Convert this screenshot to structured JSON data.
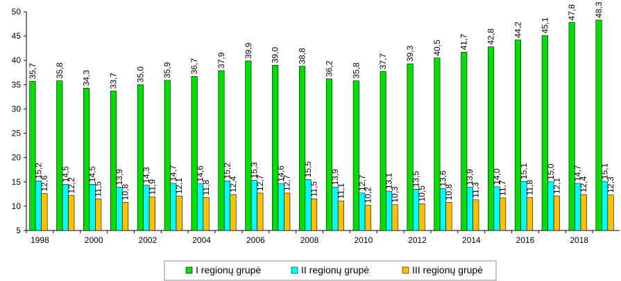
{
  "chart_data": {
    "type": "bar",
    "categories": [
      "1998",
      null,
      "2000",
      null,
      "2002",
      null,
      "2004",
      null,
      "2006",
      null,
      "2008",
      null,
      "2010",
      null,
      "2012",
      null,
      "2014",
      null,
      "2016",
      null,
      "2018",
      null
    ],
    "ylim": [
      5,
      50
    ],
    "yticks": [
      5,
      10,
      15,
      20,
      25,
      30,
      35,
      40,
      45,
      50
    ],
    "legend": "bottom",
    "series": [
      {
        "name": "I regionų grupė",
        "color": "#00dd00",
        "values": [
          35.7,
          35.8,
          34.3,
          33.7,
          35.0,
          35.9,
          36.7,
          37.9,
          39.9,
          39.0,
          38.8,
          36.2,
          35.8,
          37.7,
          39.3,
          40.5,
          41.7,
          42.8,
          44.2,
          45.1,
          47.8,
          48.3
        ],
        "value_labels": [
          "35,7",
          "35,8",
          "34,3",
          "33,7",
          "35,0",
          "35,9",
          "36,7",
          "37,9",
          "39,9",
          "39,0",
          "38,8",
          "36,2",
          "35,8",
          "37,7",
          "39,3",
          "40,5",
          "41,7",
          "42,8",
          "44,2",
          "45,1",
          "47,8",
          "48,3"
        ]
      },
      {
        "name": "II regionų grupė",
        "color": "#00ffff",
        "values": [
          15.2,
          14.5,
          14.5,
          13.9,
          14.3,
          14.7,
          14.6,
          15.2,
          15.3,
          14.6,
          15.5,
          13.9,
          12.7,
          13.1,
          13.5,
          13.6,
          13.9,
          14.0,
          15.1,
          15.0,
          14.7,
          15.1
        ],
        "value_labels": [
          "15,2",
          "14,5",
          "14,5",
          "13,9",
          "14,3",
          "14,7",
          "14,6",
          "15,2",
          "15,3",
          "14,6",
          "15,5",
          "13,9",
          "12,7",
          "13,1",
          "13,5",
          "13,6",
          "13,9",
          "14,0",
          "15,1",
          "15,0",
          "14,7",
          "15,1"
        ]
      },
      {
        "name": "III regionų grupė",
        "color": "#ffc000",
        "values": [
          12.6,
          12.2,
          11.5,
          10.8,
          11.9,
          12.1,
          11.8,
          12.4,
          12.7,
          12.7,
          11.5,
          11.1,
          10.2,
          10.3,
          10.5,
          10.8,
          11.3,
          11.7,
          11.8,
          12.1,
          12.4,
          12.3
        ],
        "value_labels": [
          "12,6",
          "12,2",
          "11,5",
          "10,8",
          "11,9",
          "12,1",
          "11,8",
          "12,4",
          "12,7",
          "12,7",
          "11,5",
          "11,1",
          "10,2",
          "10,3",
          "10,5",
          "10,8",
          "11,3",
          "11,7",
          "11,8",
          "12,1",
          "12,4",
          "12,3"
        ]
      }
    ]
  }
}
